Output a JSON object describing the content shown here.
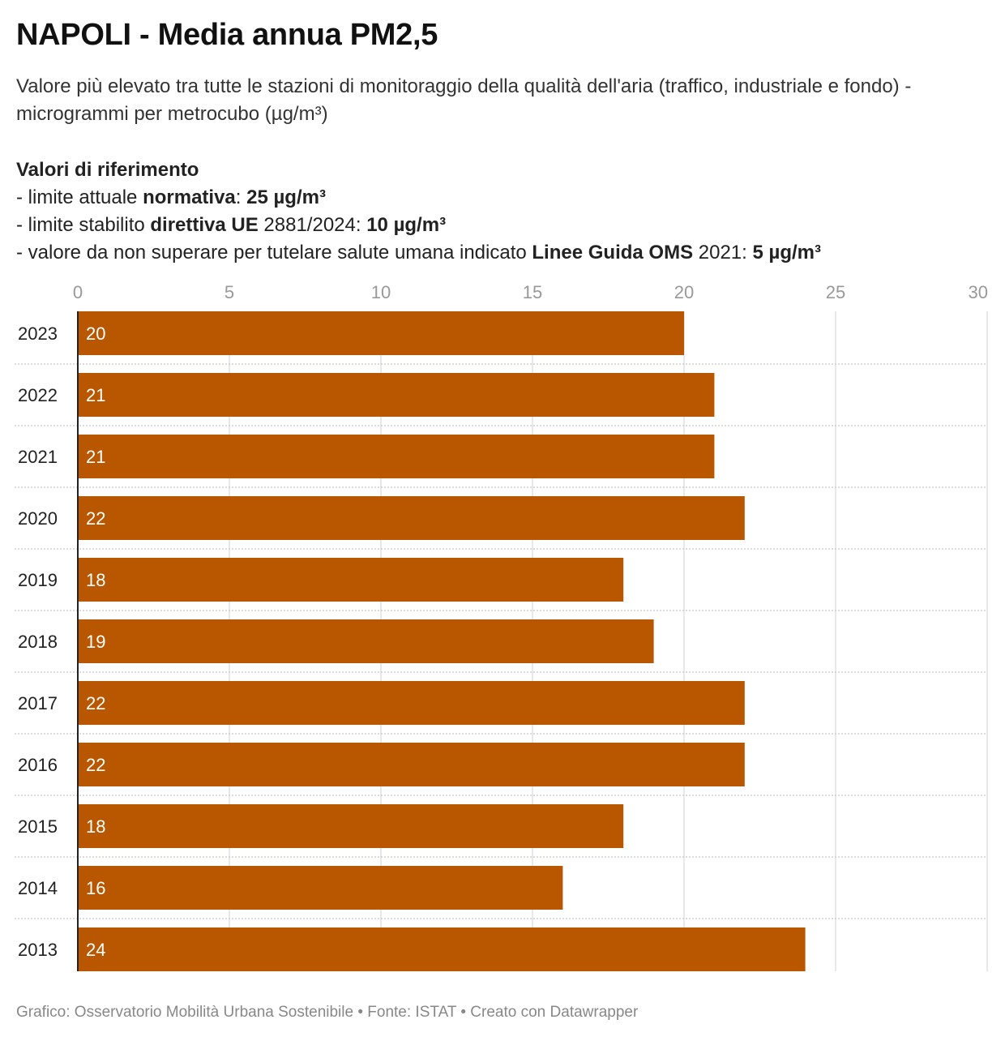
{
  "title": "NAPOLI - Media annua PM2,5",
  "subtitle": "Valore più elevato tra tutte le stazioni di monitoraggio della qualità dell'aria (traffico, industriale e fondo) - microgrammi per metrocubo (µg/m³)",
  "references": {
    "heading": "Valori di riferimento",
    "line1": {
      "pre": "- limite attuale ",
      "b1": "normativa",
      "mid": ": ",
      "b2": "25 µg/m³"
    },
    "line2": {
      "pre": "- limite stabilito ",
      "b1": "direttiva UE",
      "mid": " 2881/2024: ",
      "b2": "10 µg/m³"
    },
    "line3": {
      "pre": "- valore da non superare per tutelare salute umana indicato ",
      "b1": "Linee Guida OMS",
      "mid": " 2021: ",
      "b2": "5 µg/m³"
    }
  },
  "chart_data": {
    "type": "bar",
    "orientation": "horizontal",
    "categories": [
      "2023",
      "2022",
      "2021",
      "2020",
      "2019",
      "2018",
      "2017",
      "2016",
      "2015",
      "2014",
      "2013"
    ],
    "values": [
      20,
      21,
      21,
      22,
      18,
      19,
      22,
      22,
      18,
      16,
      24
    ],
    "xlim": [
      0,
      30
    ],
    "xticks": [
      "0",
      "5",
      "10",
      "15",
      "20",
      "25",
      "30"
    ],
    "bar_color": "#b85700",
    "grid": true,
    "xaxis_position": "top"
  },
  "footer": "Grafico: Osservatorio Mobilità Urbana Sostenibile • Fonte: ISTAT • Creato con Datawrapper"
}
